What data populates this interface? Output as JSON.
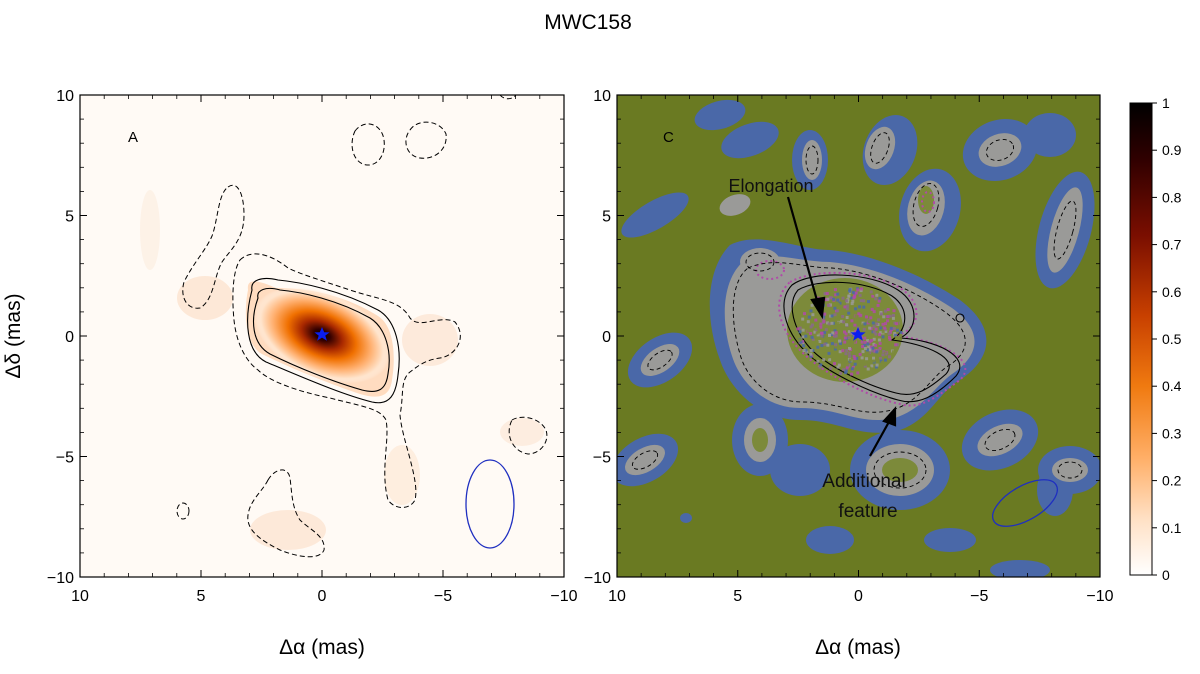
{
  "figure_title": "MWC158",
  "chart_data": [
    {
      "type": "heatmap",
      "panel_label": "A",
      "colormap": "hot (white to black)",
      "xlabel": "Δα (mas)",
      "ylabel": "Δδ (mas)",
      "xlim": [
        10,
        -10
      ],
      "ylim": [
        -10,
        10
      ],
      "xticks": [
        10,
        5,
        0,
        -5,
        -10
      ],
      "yticks": [
        -10,
        -5,
        0,
        5,
        10
      ],
      "xtick_labels": [
        "10",
        "5",
        "0",
        "−5",
        "−10"
      ],
      "ytick_labels": [
        "−10",
        "−5",
        "0",
        "5",
        "10"
      ],
      "peak": {
        "x": 0,
        "y": 0,
        "value": 1
      },
      "star_marker": {
        "x": 0,
        "y": 0,
        "color": "#0a1ef0"
      },
      "beam": {
        "x": -7,
        "y": -7,
        "semi_major": 1.8,
        "semi_minor": 1.0,
        "angle_deg": 0,
        "color": "#1f2fc0"
      }
    },
    {
      "type": "heatmap",
      "panel_label": "C",
      "colormap": "saturated residual map (olive background)",
      "xlabel": "Δα (mas)",
      "ylabel": "",
      "xlim": [
        10,
        -10
      ],
      "ylim": [
        -10,
        10
      ],
      "xticks": [
        10,
        5,
        0,
        -5,
        -10
      ],
      "yticks": [
        -10,
        -5,
        0,
        5,
        10
      ],
      "xtick_labels": [
        "10",
        "5",
        "0",
        "−5",
        "−10"
      ],
      "ytick_labels": [
        "−10",
        "−5",
        "0",
        "5",
        "10"
      ],
      "star_marker": {
        "x": 0,
        "y": 0,
        "color": "#0a1ef0"
      },
      "beam": {
        "x": -7,
        "y": -7,
        "semi_major": 1.6,
        "semi_minor": 0.8,
        "angle_deg": 30,
        "color": "#1f2fc0"
      },
      "annotations": [
        {
          "text": "Elongation",
          "text_x": 5.8,
          "text_y": 6.0,
          "arrow_to": [
            1.4,
            -0.5
          ]
        },
        {
          "text": "Additional",
          "text_x": -0.5,
          "text_y": -5.9,
          "arrow_to": [
            -1.5,
            -3.1
          ]
        },
        {
          "text": "feature",
          "text_x": -0.5,
          "text_y": -7.2
        }
      ]
    }
  ],
  "colorbar": {
    "min": 0,
    "max": 1,
    "ticks": [
      "0",
      "0.1",
      "0.2",
      "0.3",
      "0.4",
      "0.5",
      "0.6",
      "0.7",
      "0.8",
      "0.9",
      "1"
    ]
  },
  "colors": {
    "olive_bg": "#6a7a22",
    "residual_blue": "#4a68a8",
    "residual_grey": "#9a9a98",
    "residual_magenta": "#b04aa8",
    "contour": "#000000"
  }
}
